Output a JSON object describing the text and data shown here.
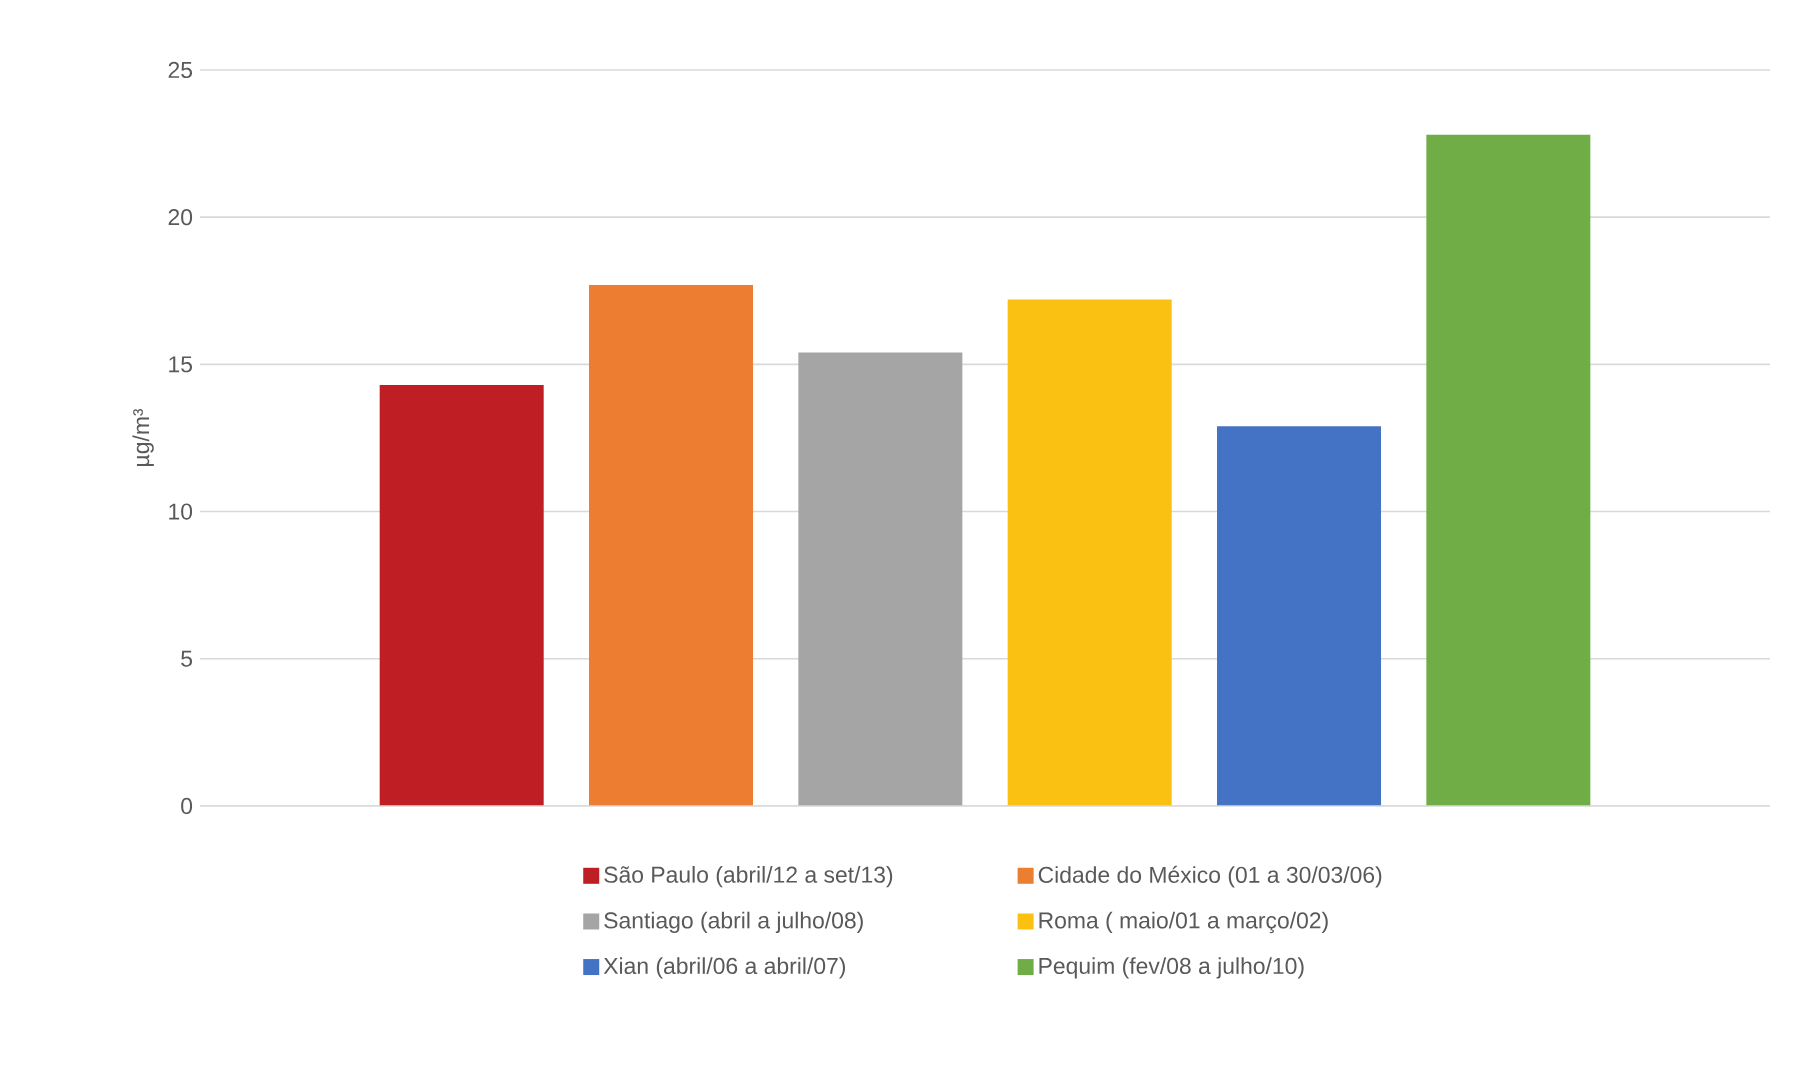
{
  "chart_data": {
    "type": "bar",
    "ylabel": "µg/m³",
    "categories": [
      null,
      null,
      null,
      null,
      null,
      null
    ],
    "series": [
      {
        "name": "São Paulo (abril/12 a set/13)",
        "color": "#be1e24",
        "values": [
          14.3,
          null,
          null,
          null,
          null,
          null
        ]
      },
      {
        "name": "Cidade do México (01 a 30/03/06)",
        "color": "#ed7d31",
        "values": [
          null,
          17.7,
          null,
          null,
          null,
          null
        ]
      },
      {
        "name": "Santiago (abril a julho/08)",
        "color": "#a5a5a5",
        "values": [
          null,
          null,
          15.4,
          null,
          null,
          null
        ]
      },
      {
        "name": "Roma ( maio/01 a março/02)",
        "color": "#fbc112",
        "values": [
          null,
          null,
          null,
          17.2,
          null,
          null
        ]
      },
      {
        "name": "Xian (abril/06 a abril/07)",
        "color": "#4472c4",
        "values": [
          null,
          null,
          null,
          null,
          12.9,
          null
        ]
      },
      {
        "name": "Pequim (fev/08 a julho/10)",
        "color": "#70ad47",
        "values": [
          null,
          null,
          null,
          null,
          null,
          22.8
        ]
      }
    ],
    "ylim": [
      0,
      25
    ],
    "yticks": [
      0,
      5,
      10,
      15,
      20,
      25
    ],
    "grid": "y",
    "legend": "bottom"
  }
}
